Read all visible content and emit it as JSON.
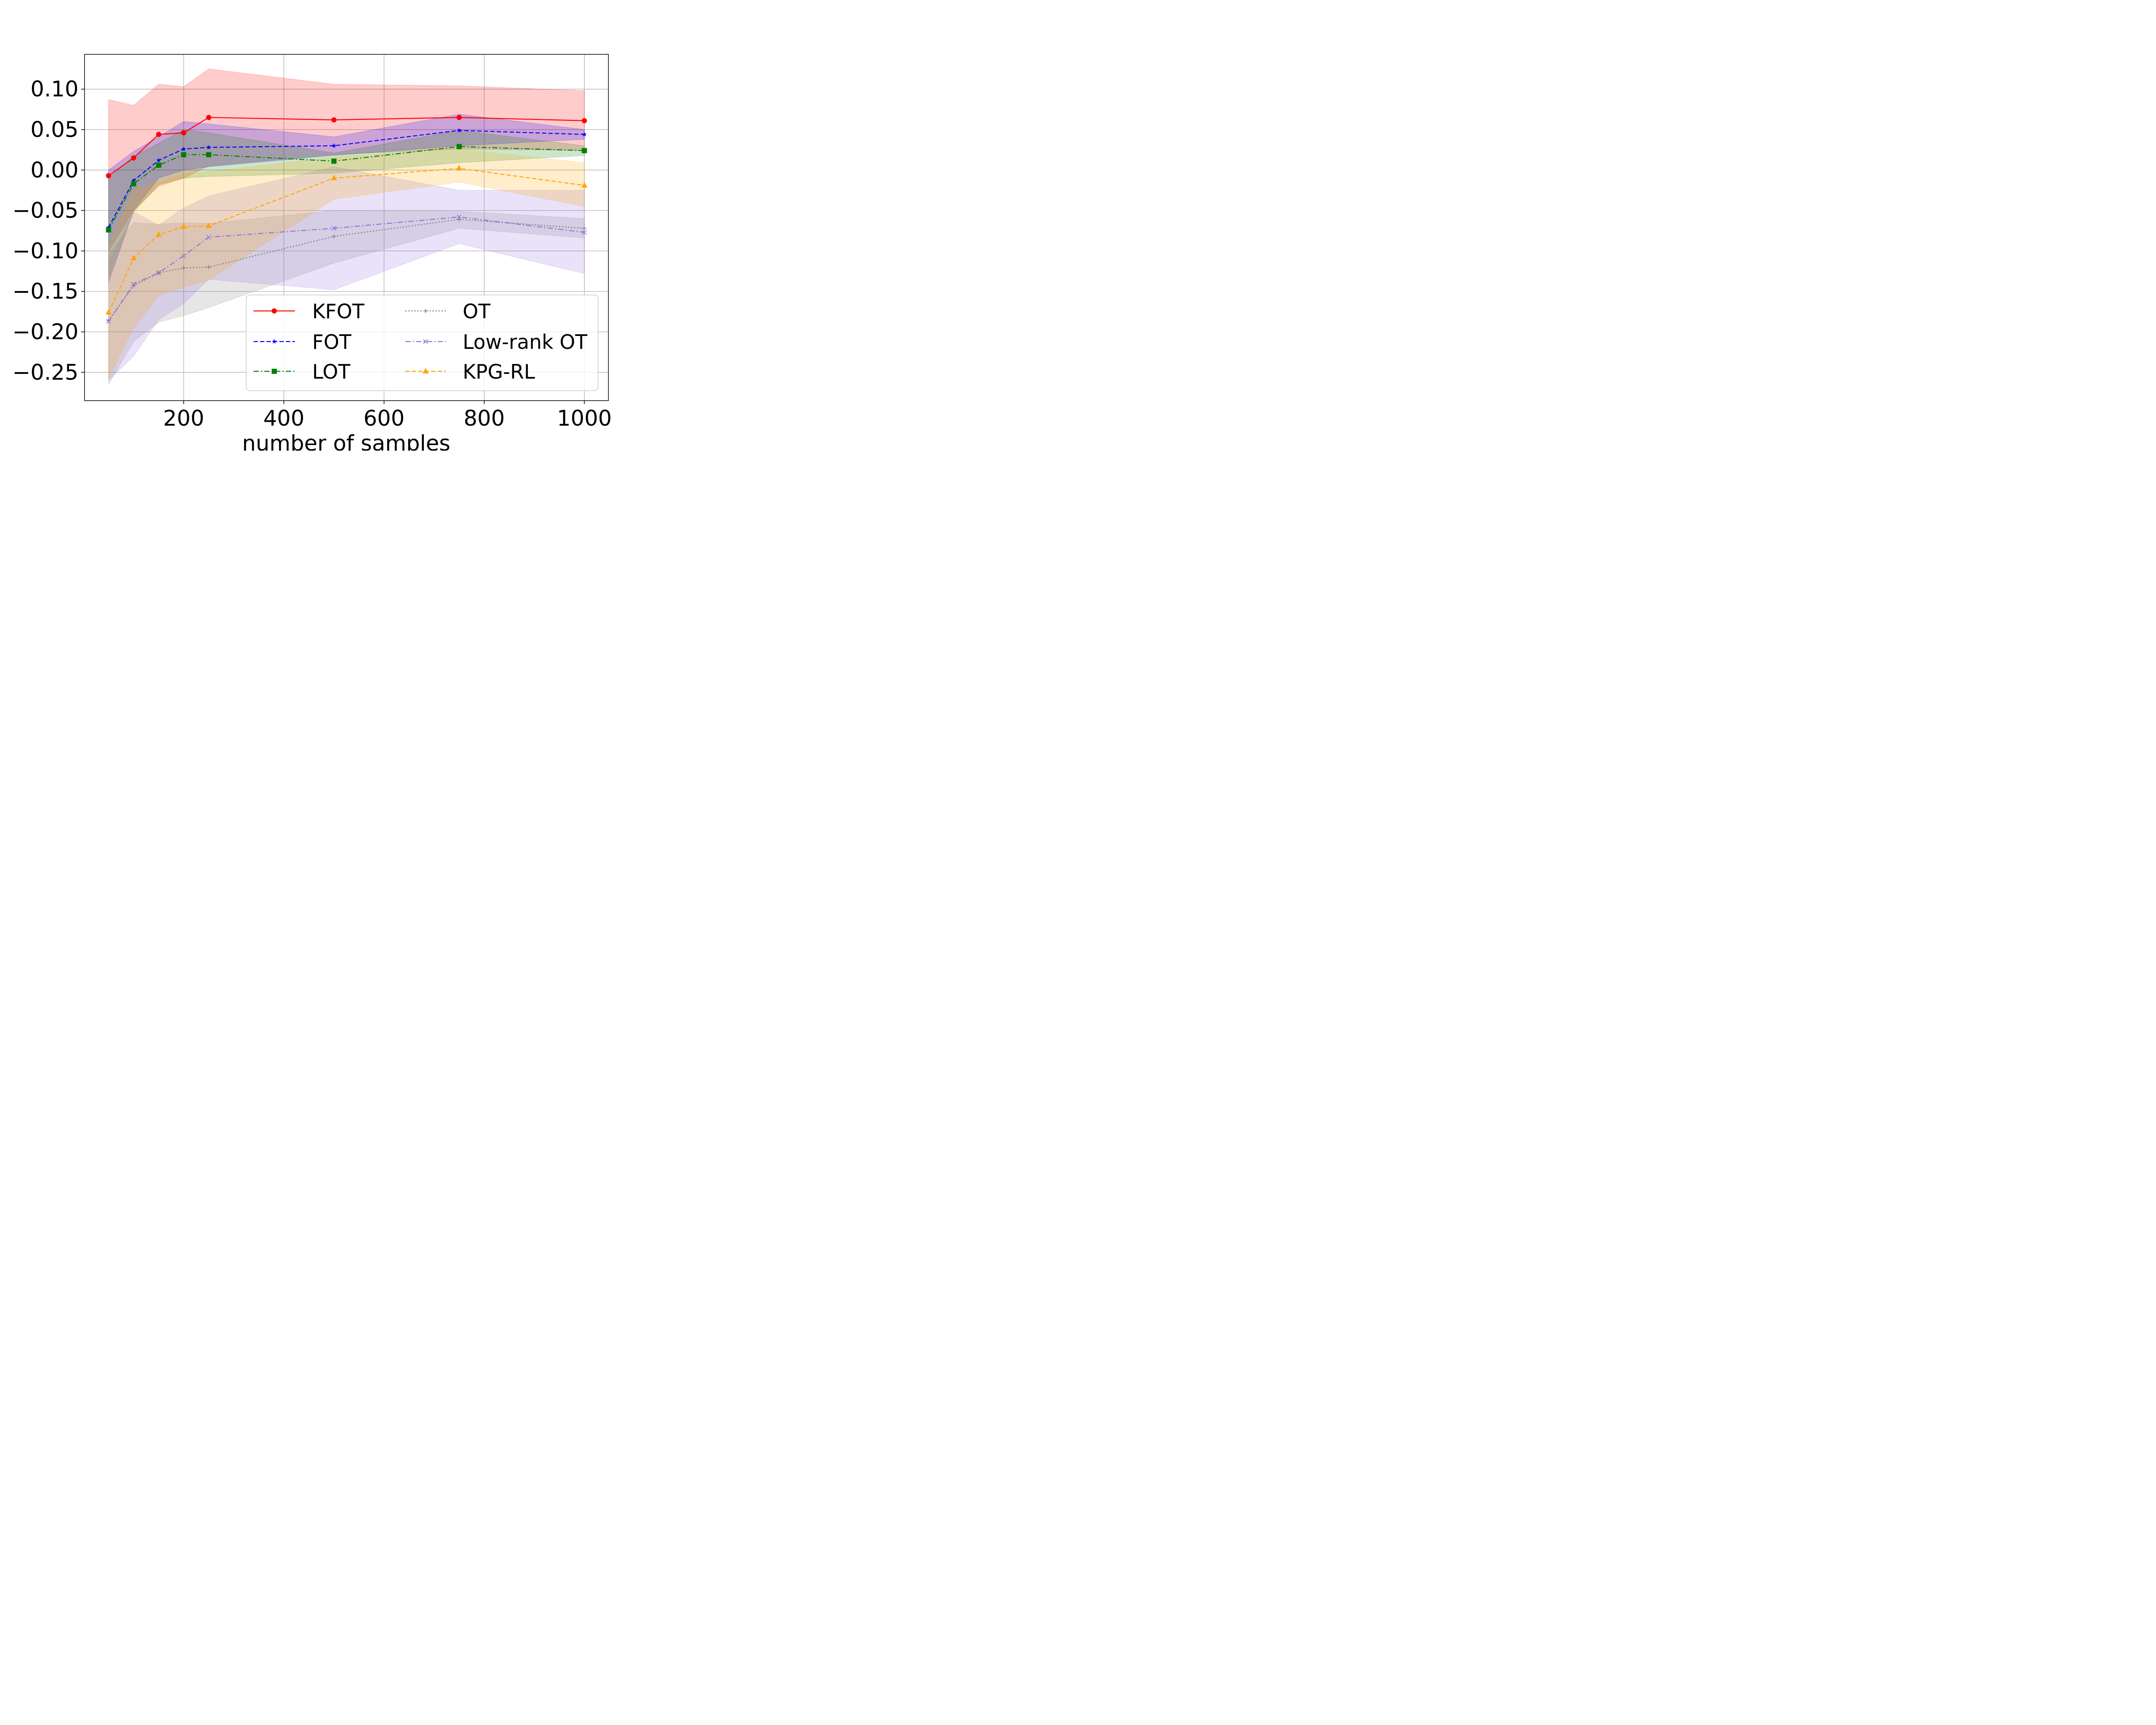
{
  "chart_data": {
    "type": "line",
    "title": "",
    "xlabel": "number of samples",
    "ylabel": "",
    "x": [
      50,
      100,
      150,
      200,
      250,
      500,
      750,
      1000
    ],
    "xlim": [
      2,
      1048
    ],
    "ylim": [
      -0.285,
      0.143
    ],
    "xticks": [
      200,
      400,
      600,
      800,
      1000
    ],
    "yticks": [
      0.1,
      0.05,
      0.0,
      -0.05,
      -0.1,
      -0.15,
      -0.2,
      -0.25
    ],
    "xtick_labels": [
      "200",
      "400",
      "600",
      "800",
      "1000"
    ],
    "ytick_labels": [
      "0.10",
      "0.05",
      "0.00",
      "−0.05",
      "−0.10",
      "−0.15",
      "−0.20",
      "−0.25"
    ],
    "grid": true,
    "legend_position": "lower-right",
    "series": [
      {
        "name": "KFOT",
        "color": "#ff0000",
        "dash": "solid",
        "marker": "circle",
        "values": [
          -0.007,
          0.015,
          0.044,
          0.046,
          0.065,
          0.062,
          0.065,
          0.061
        ],
        "lower": [
          -0.1,
          -0.05,
          -0.02,
          -0.01,
          0.005,
          0.019,
          0.026,
          0.024
        ],
        "upper": [
          0.087,
          0.08,
          0.106,
          0.103,
          0.125,
          0.106,
          0.104,
          0.098
        ]
      },
      {
        "name": "FOT",
        "color": "#0000ff",
        "dash": "dashed",
        "marker": "star",
        "values": [
          -0.071,
          -0.013,
          0.012,
          0.026,
          0.028,
          0.03,
          0.049,
          0.044
        ],
        "lower": [
          -0.14,
          -0.05,
          -0.01,
          0.0,
          0.004,
          0.018,
          0.03,
          0.038
        ],
        "upper": [
          0.0,
          0.023,
          0.041,
          0.06,
          0.057,
          0.041,
          0.069,
          0.05
        ]
      },
      {
        "name": "LOT",
        "color": "#008000",
        "dash": "dashdot",
        "marker": "square",
        "values": [
          -0.074,
          -0.017,
          0.006,
          0.019,
          0.019,
          0.011,
          0.029,
          0.024
        ],
        "lower": [
          -0.135,
          -0.052,
          -0.018,
          -0.01,
          -0.008,
          -0.004,
          0.009,
          0.018
        ],
        "upper": [
          -0.01,
          0.017,
          0.033,
          0.05,
          0.046,
          0.021,
          0.049,
          0.03
        ]
      },
      {
        "name": "OT",
        "color": "#808080",
        "dash": "dotted",
        "marker": "plus",
        "values": [
          -0.186,
          -0.143,
          -0.127,
          -0.121,
          -0.12,
          -0.082,
          -0.061,
          -0.072
        ],
        "lower": [
          -0.265,
          -0.212,
          -0.188,
          -0.18,
          -0.17,
          -0.115,
          -0.072,
          -0.084
        ],
        "upper": [
          -0.105,
          -0.065,
          -0.067,
          -0.065,
          -0.066,
          -0.05,
          -0.051,
          -0.06
        ]
      },
      {
        "name": "Low-rank OT",
        "color": "#9370db",
        "dash": "dashdot",
        "marker": "x",
        "values": [
          -0.187,
          -0.141,
          -0.127,
          -0.106,
          -0.083,
          -0.072,
          -0.058,
          -0.077
        ],
        "lower": [
          -0.26,
          -0.23,
          -0.185,
          -0.165,
          -0.135,
          -0.148,
          -0.091,
          -0.128
        ],
        "upper": [
          -0.114,
          -0.052,
          -0.068,
          -0.047,
          -0.032,
          0.004,
          -0.025,
          -0.025
        ]
      },
      {
        "name": "KPG-RL",
        "color": "#ffa500",
        "dash": "dashed",
        "marker": "triangle",
        "values": [
          -0.176,
          -0.109,
          -0.08,
          -0.07,
          -0.069,
          -0.01,
          0.002,
          -0.019
        ],
        "lower": [
          -0.258,
          -0.195,
          -0.155,
          -0.145,
          -0.136,
          -0.036,
          -0.015,
          -0.045
        ],
        "upper": [
          -0.096,
          -0.024,
          -0.015,
          -0.005,
          -0.002,
          0.016,
          0.026,
          0.009
        ]
      }
    ]
  }
}
